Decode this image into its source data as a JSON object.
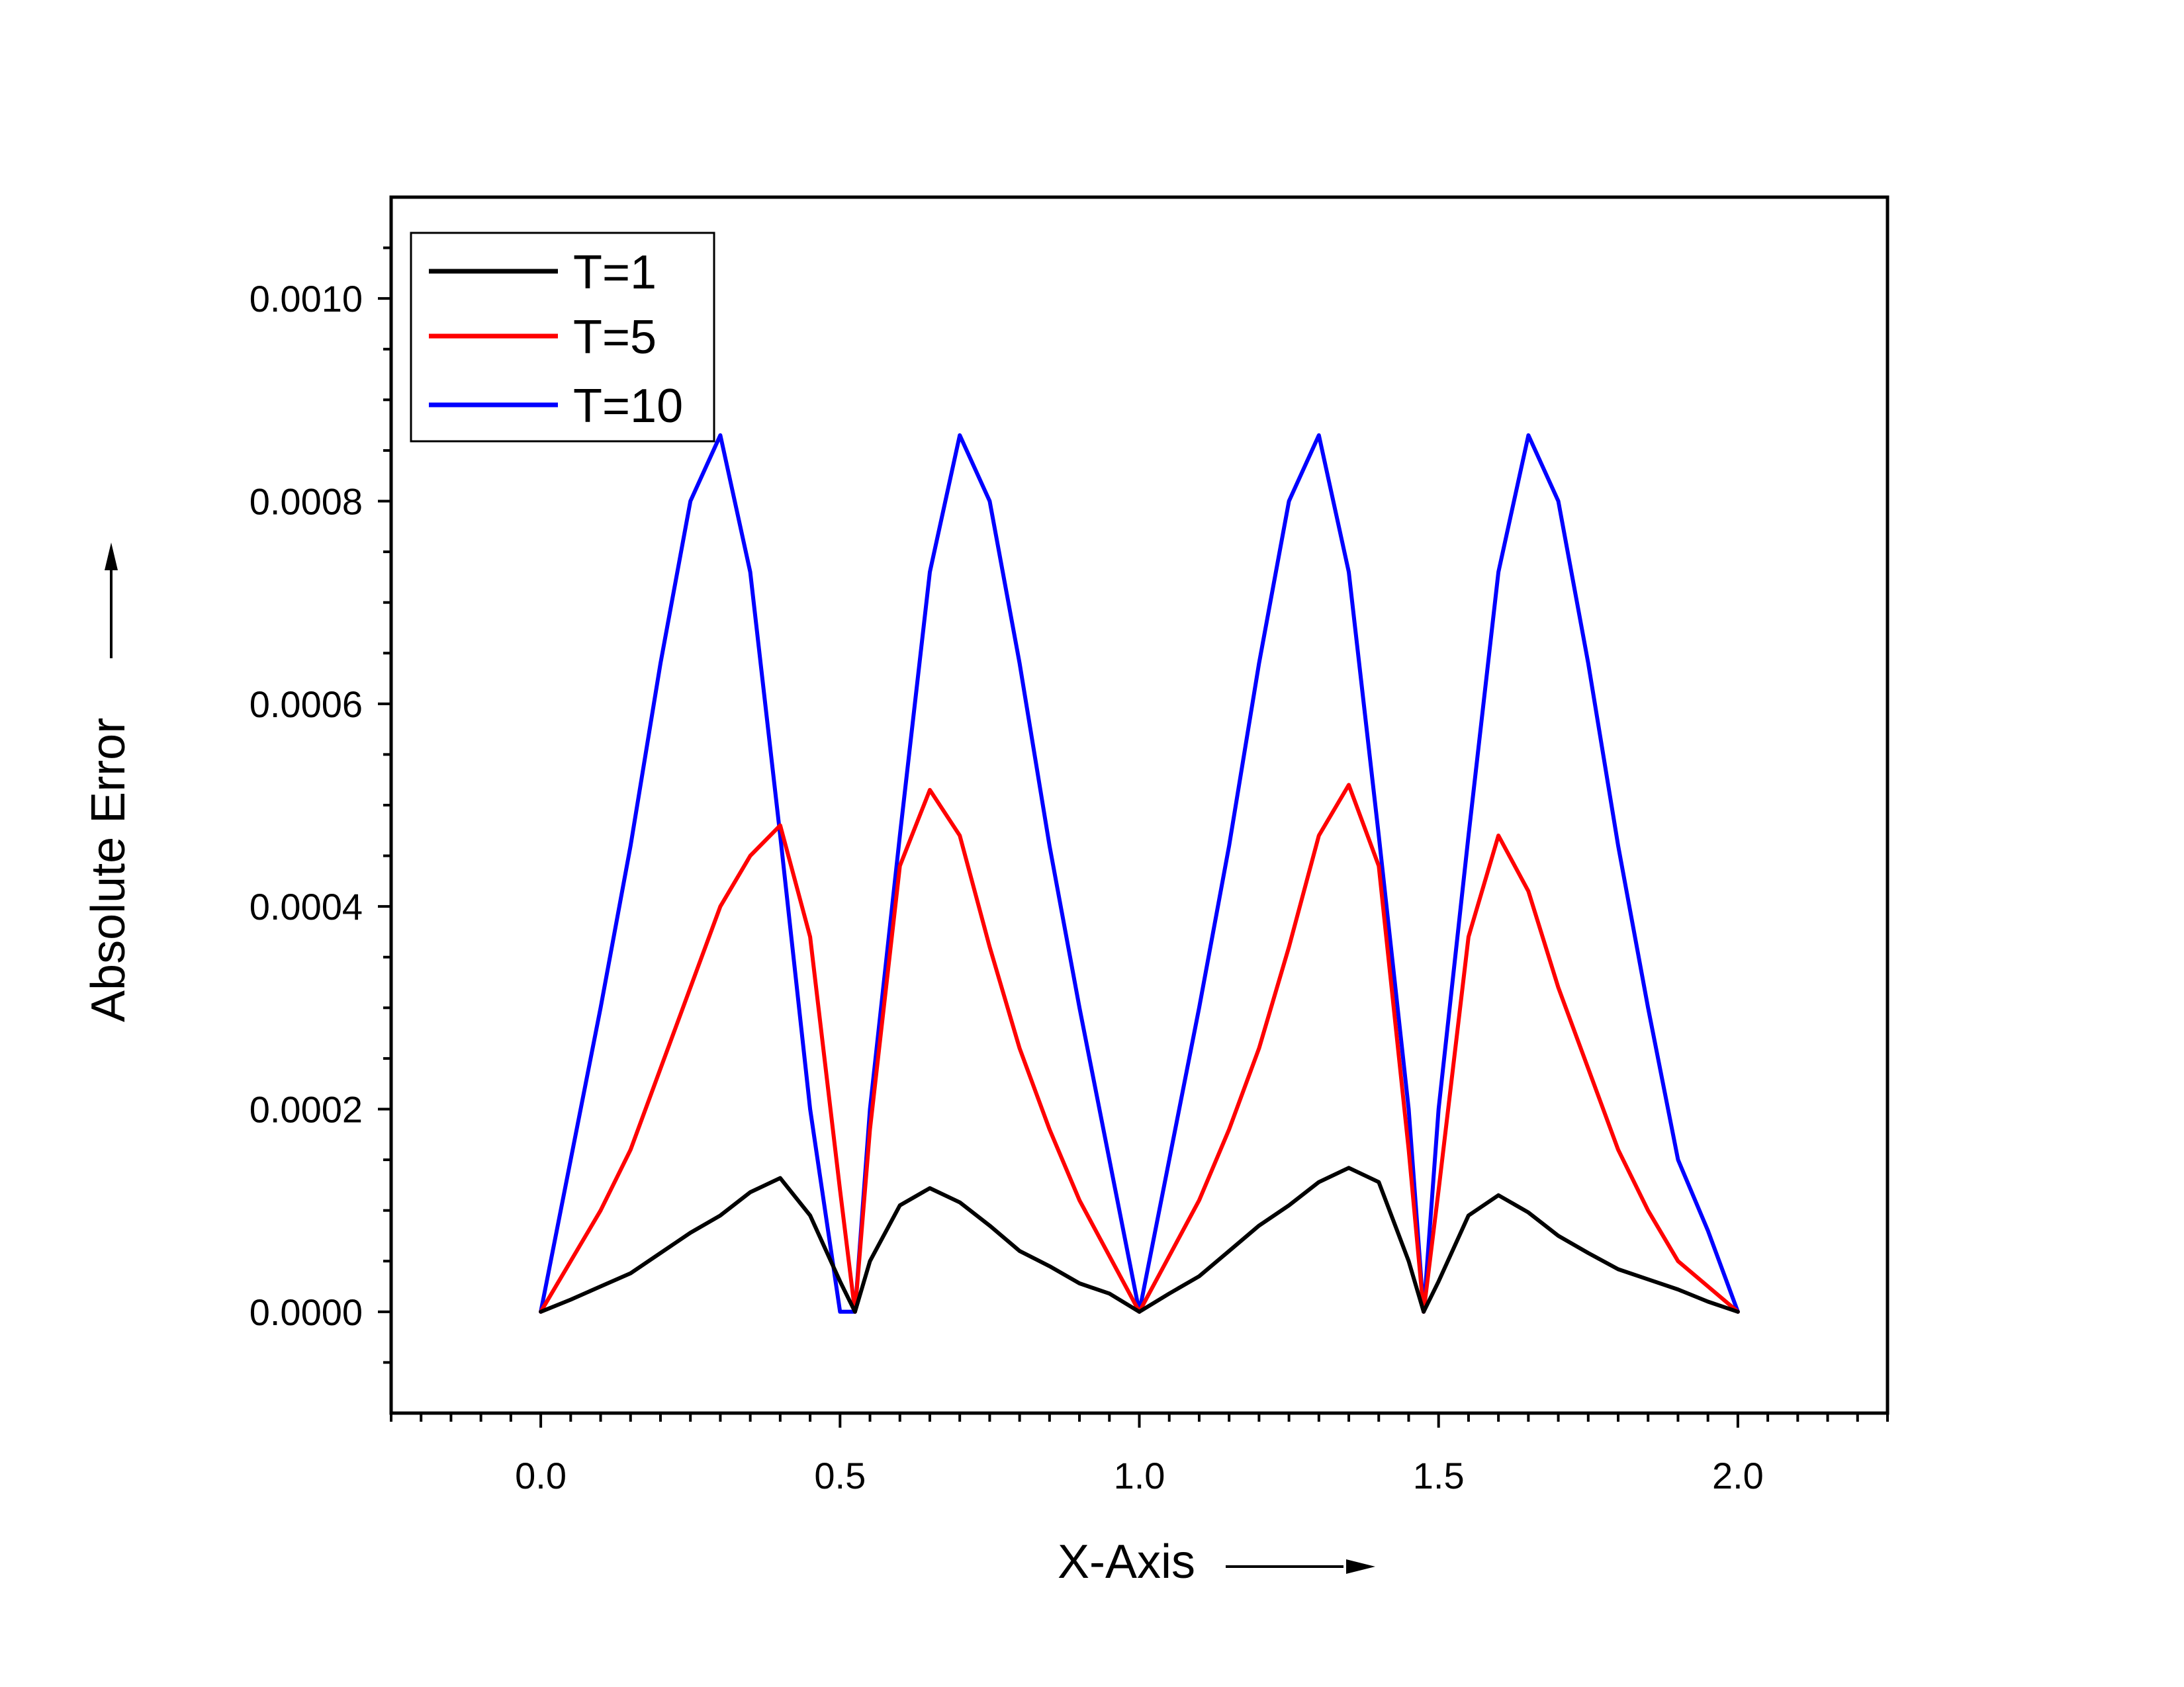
{
  "chart_data": {
    "type": "line",
    "title": "",
    "xlabel": "X-Axis",
    "ylabel": "Absolute Error",
    "xlim": [
      -0.25,
      2.25
    ],
    "ylim": [
      -0.0001,
      0.0011
    ],
    "x_ticks": [
      0.0,
      0.5,
      1.0,
      1.5,
      2.0
    ],
    "x_tick_labels": [
      "0.0",
      "0.5",
      "1.0",
      "1.5",
      "2.0"
    ],
    "y_ticks": [
      0.0,
      0.0002,
      0.0004,
      0.0006,
      0.0008,
      0.001
    ],
    "y_tick_labels": [
      "0.0000",
      "0.0002",
      "0.0004",
      "0.0006",
      "0.0008",
      "0.0010"
    ],
    "grid": false,
    "legend_position": "top-left",
    "series": [
      {
        "name": "T=1",
        "color": "#000000",
        "x": [
          0.0,
          0.05,
          0.1,
          0.15,
          0.2,
          0.25,
          0.3,
          0.35,
          0.4,
          0.45,
          0.5,
          0.525,
          0.55,
          0.6,
          0.65,
          0.7,
          0.75,
          0.8,
          0.85,
          0.9,
          0.95,
          1.0,
          1.05,
          1.1,
          1.15,
          1.2,
          1.25,
          1.3,
          1.35,
          1.4,
          1.45,
          1.475,
          1.5,
          1.55,
          1.6,
          1.65,
          1.7,
          1.75,
          1.8,
          1.85,
          1.9,
          1.95,
          2.0
        ],
        "y": [
          0.0,
          1.2e-05,
          2.5e-05,
          3.8e-05,
          5.8e-05,
          7.8e-05,
          9.5e-05,
          0.000118,
          0.000132,
          9.5e-05,
          3e-05,
          0.0,
          5e-05,
          0.000105,
          0.000122,
          0.000108,
          8.5e-05,
          6e-05,
          4.5e-05,
          2.8e-05,
          1.8e-05,
          0.0,
          1.8e-05,
          3.5e-05,
          6e-05,
          8.5e-05,
          0.000105,
          0.000128,
          0.000142,
          0.000128,
          5e-05,
          0.0,
          3e-05,
          9.5e-05,
          0.000115,
          9.8e-05,
          7.5e-05,
          5.8e-05,
          4.2e-05,
          3.2e-05,
          2.2e-05,
          1e-05,
          0.0
        ]
      },
      {
        "name": "T=5",
        "color": "#ff0000",
        "x": [
          0.0,
          0.05,
          0.1,
          0.15,
          0.2,
          0.25,
          0.3,
          0.35,
          0.4,
          0.45,
          0.5,
          0.525,
          0.55,
          0.6,
          0.65,
          0.7,
          0.75,
          0.8,
          0.85,
          0.9,
          0.95,
          1.0,
          1.05,
          1.1,
          1.15,
          1.2,
          1.25,
          1.3,
          1.35,
          1.4,
          1.45,
          1.475,
          1.5,
          1.55,
          1.6,
          1.65,
          1.7,
          1.75,
          1.8,
          1.85,
          1.9,
          1.95,
          2.0
        ],
        "y": [
          0.0,
          5e-05,
          0.0001,
          0.00016,
          0.00024,
          0.00032,
          0.0004,
          0.00045,
          0.00048,
          0.00037,
          0.00012,
          0.0,
          0.00018,
          0.00044,
          0.000515,
          0.00047,
          0.00036,
          0.00026,
          0.00018,
          0.00011,
          5.5e-05,
          0.0,
          5.5e-05,
          0.00011,
          0.00018,
          0.00026,
          0.00036,
          0.00047,
          0.00052,
          0.00044,
          0.00016,
          0.0,
          0.00012,
          0.00037,
          0.00047,
          0.000415,
          0.00032,
          0.00024,
          0.00016,
          0.0001,
          5e-05,
          2.5e-05,
          0.0
        ]
      },
      {
        "name": "T=10",
        "color": "#0000ff",
        "x": [
          0.0,
          0.05,
          0.1,
          0.15,
          0.2,
          0.25,
          0.3,
          0.35,
          0.4,
          0.45,
          0.5,
          0.525,
          0.55,
          0.6,
          0.65,
          0.7,
          0.75,
          0.8,
          0.85,
          0.9,
          0.95,
          1.0,
          1.05,
          1.1,
          1.15,
          1.2,
          1.25,
          1.3,
          1.35,
          1.4,
          1.45,
          1.475,
          1.5,
          1.55,
          1.6,
          1.65,
          1.7,
          1.75,
          1.8,
          1.85,
          1.9,
          1.95,
          2.0
        ],
        "y": [
          0.0,
          0.00015,
          0.0003,
          0.00046,
          0.00064,
          0.0008,
          0.000865,
          0.00073,
          0.00047,
          0.0002,
          0.0,
          0.0,
          0.0002,
          0.00047,
          0.00073,
          0.000865,
          0.0008,
          0.00064,
          0.00046,
          0.0003,
          0.00015,
          0.0,
          0.00015,
          0.0003,
          0.00046,
          0.00064,
          0.0008,
          0.000865,
          0.00073,
          0.00047,
          0.0002,
          0.0,
          0.0002,
          0.00047,
          0.00073,
          0.000865,
          0.0008,
          0.00064,
          0.00046,
          0.0003,
          0.00015,
          8e-05,
          0.0
        ]
      }
    ]
  }
}
